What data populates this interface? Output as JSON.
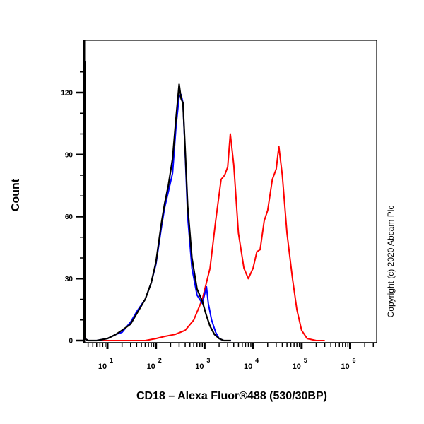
{
  "chart_data": {
    "type": "line",
    "title": "",
    "xlabel": "CD18 – Alexa Fluor®488 (530/30BP)",
    "ylabel": "Count",
    "xscale": "log",
    "xlim": [
      3,
      300000
    ],
    "ylim": [
      0,
      135
    ],
    "yticks": [
      0,
      30,
      60,
      90,
      120
    ],
    "xticks": [
      {
        "value": 10,
        "label_base": "10",
        "label_exp": "1"
      },
      {
        "value": 100,
        "label_base": "10",
        "label_exp": "2"
      },
      {
        "value": 1000,
        "label_base": "10",
        "label_exp": "3"
      },
      {
        "value": 10000,
        "label_base": "10",
        "label_exp": "4"
      },
      {
        "value": 100000,
        "label_base": "10",
        "label_exp": "5"
      },
      {
        "value": 1000000,
        "label_base": "10",
        "label_exp": "6"
      }
    ],
    "grid": false,
    "legend": null,
    "annotation": "Copyright (c) 2020 Abcam Plc",
    "series": [
      {
        "name": "blue-histogram",
        "color": "#0000ff",
        "x": [
          3,
          3.3,
          4,
          6,
          10,
          15,
          20,
          30,
          40,
          60,
          80,
          100,
          130,
          150,
          180,
          220,
          260,
          300,
          330,
          360,
          400,
          450,
          550,
          700,
          900,
          1100,
          1200,
          1400,
          1700,
          2000,
          2500,
          3500
        ],
        "y": [
          135,
          1,
          0,
          0,
          1,
          3,
          4,
          9,
          14,
          20,
          28,
          37,
          55,
          64,
          72,
          81,
          104,
          118,
          119,
          115,
          90,
          60,
          35,
          22,
          18,
          26,
          18,
          10,
          4,
          1,
          0,
          0
        ]
      },
      {
        "name": "black-histogram",
        "color": "#000000",
        "x": [
          3,
          3.3,
          4,
          6,
          10,
          15,
          20,
          30,
          40,
          60,
          80,
          100,
          130,
          150,
          180,
          220,
          260,
          300,
          330,
          360,
          400,
          450,
          550,
          700,
          900,
          1100,
          1300,
          1600,
          2000,
          2500,
          3500
        ],
        "y": [
          135,
          1,
          0,
          0,
          1,
          3,
          5,
          8,
          13,
          20,
          28,
          38,
          57,
          66,
          75,
          88,
          108,
          124,
          117,
          115,
          92,
          65,
          40,
          25,
          19,
          12,
          7,
          3,
          1,
          0,
          0
        ]
      },
      {
        "name": "red-histogram",
        "color": "#ff0000",
        "x": [
          3,
          3.3,
          4,
          10,
          60,
          100,
          150,
          250,
          400,
          600,
          900,
          1300,
          1700,
          2200,
          2600,
          3000,
          3400,
          4000,
          5000,
          6500,
          8000,
          10000,
          12000,
          14000,
          17000,
          20000,
          25000,
          30000,
          34000,
          40000,
          50000,
          65000,
          80000,
          100000,
          130000,
          200000,
          300000
        ],
        "y": [
          14,
          1,
          0,
          0,
          0,
          1,
          2,
          3,
          5,
          10,
          20,
          35,
          58,
          78,
          80,
          84,
          100,
          85,
          52,
          35,
          30,
          35,
          43,
          44,
          58,
          63,
          78,
          83,
          94,
          80,
          52,
          30,
          15,
          5,
          1,
          0,
          0
        ]
      }
    ]
  }
}
